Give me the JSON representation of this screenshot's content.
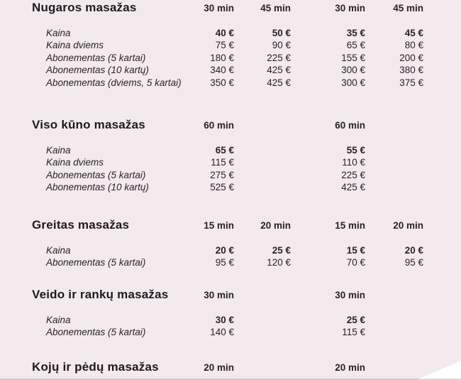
{
  "colors": {
    "background": "#f3eaed",
    "text": "#27222a",
    "heading": "#1e1a21",
    "corner_cutout": "#ffffff"
  },
  "price_list": {
    "language": "Lithuanian",
    "currency_symbol": "€",
    "sections": [
      {
        "title": "Nugaros masažas",
        "durations": [
          "30 min",
          "45 min",
          "30 min",
          "45 min"
        ],
        "rows": [
          {
            "label": "Kaina",
            "bold": true,
            "values": [
              "40 €",
              "50 €",
              "35 €",
              "45 €"
            ]
          },
          {
            "label": "Kaina dviems",
            "bold": false,
            "values": [
              "75 €",
              "90 €",
              "65 €",
              "80 €"
            ]
          },
          {
            "label": "Abonementas (5 kartai)",
            "bold": false,
            "values": [
              "180 €",
              "225 €",
              "155 €",
              "200 €"
            ]
          },
          {
            "label": "Abonementas (10 kartų)",
            "bold": false,
            "values": [
              "340 €",
              "425 €",
              "300 €",
              "380 €"
            ]
          },
          {
            "label": "Abonementas (dviems, 5 kartai)",
            "bold": false,
            "values": [
              "350 €",
              "425 €",
              "300 €",
              "375 €"
            ]
          }
        ]
      },
      {
        "title": "Viso kūno masažas",
        "durations": [
          "60 min",
          "",
          "60 min",
          ""
        ],
        "rows": [
          {
            "label": "Kaina",
            "bold": true,
            "values": [
              "65 €",
              "",
              "55 €",
              ""
            ]
          },
          {
            "label": "Kaina dviems",
            "bold": false,
            "values": [
              "115 €",
              "",
              "110 €",
              ""
            ]
          },
          {
            "label": "Abonementas (5 kartai)",
            "bold": false,
            "values": [
              "275 €",
              "",
              "225 €",
              ""
            ]
          },
          {
            "label": "Abonementas (10 kartų)",
            "bold": false,
            "values": [
              "525 €",
              "",
              "425 €",
              ""
            ]
          }
        ]
      },
      {
        "title": "Greitas masažas",
        "durations": [
          "15 min",
          "20 min",
          "15 min",
          "20 min"
        ],
        "rows": [
          {
            "label": "Kaina",
            "bold": true,
            "values": [
              "20 €",
              "25 €",
              "15 €",
              "20 €"
            ]
          },
          {
            "label": "Abonementas (5 kartai)",
            "bold": false,
            "values": [
              "95 €",
              "120 €",
              "70 €",
              "95 €"
            ]
          }
        ]
      },
      {
        "title": "Veido ir rankų masažas",
        "durations": [
          "30 min",
          "",
          "30 min",
          ""
        ],
        "rows": [
          {
            "label": "Kaina",
            "bold": true,
            "values": [
              "30 €",
              "",
              "25 €",
              ""
            ]
          },
          {
            "label": "Abonementas (5 kartai)",
            "bold": false,
            "values": [
              "140 €",
              "",
              "115 €",
              ""
            ]
          }
        ]
      },
      {
        "title": "Kojų ir pėdų masažas",
        "durations": [
          "20 min",
          "",
          "20 min",
          ""
        ],
        "rows": []
      }
    ]
  }
}
